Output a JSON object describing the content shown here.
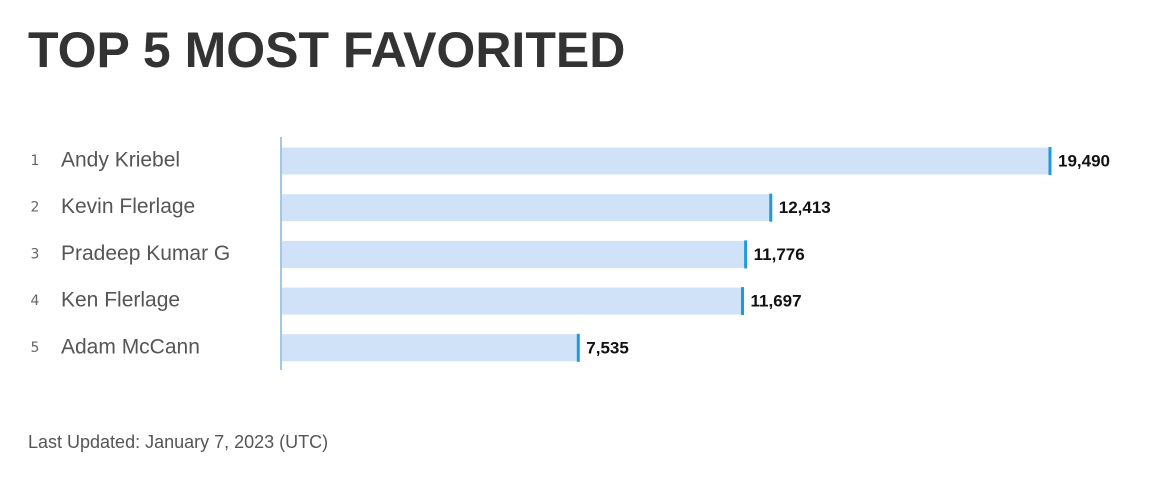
{
  "chart_data": {
    "type": "bar",
    "orientation": "horizontal",
    "title": "TOP 5 MOST FAVORITED",
    "ranks": [
      1,
      2,
      3,
      4,
      5
    ],
    "categories": [
      "Andy Kriebel",
      "Kevin Flerlage",
      "Pradeep Kumar G",
      "Ken Flerlage",
      "Adam McCann"
    ],
    "values": [
      19490,
      12413,
      11776,
      11697,
      7535
    ],
    "value_labels": [
      "19,490",
      "12,413",
      "11,776",
      "11,697",
      "7,535"
    ],
    "color": "#cfe2f7",
    "marker_color": "#1f9bd7",
    "footnote": "Last Updated: January 7, 2023 (UTC)"
  }
}
